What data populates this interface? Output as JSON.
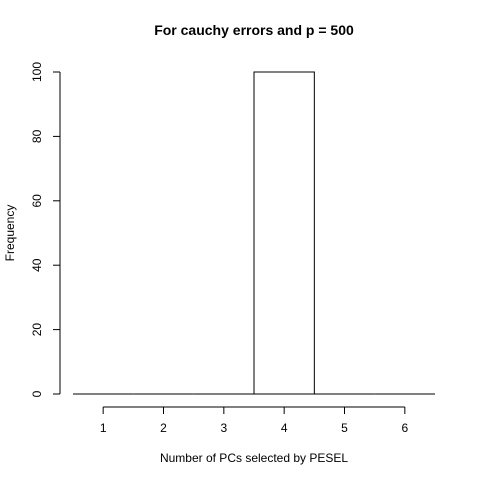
{
  "chart_data": {
    "type": "bar",
    "title": "For cauchy errors and p = 500",
    "xlabel": "Number of PCs selected by PESEL",
    "ylabel": "Frequency",
    "categories": [
      "1",
      "2",
      "3",
      "4",
      "5",
      "6"
    ],
    "values": [
      0,
      0,
      0,
      100,
      0,
      0
    ],
    "xlim": [
      0.5,
      6.5
    ],
    "ylim": [
      0,
      100
    ],
    "x_ticks": [
      1,
      2,
      3,
      4,
      5,
      6
    ],
    "y_ticks": [
      0,
      20,
      40,
      60,
      80,
      100
    ],
    "bar_width": 1,
    "grid": false,
    "colors": {
      "bar_fill": "#ffffff",
      "bar_stroke": "#000000"
    }
  }
}
